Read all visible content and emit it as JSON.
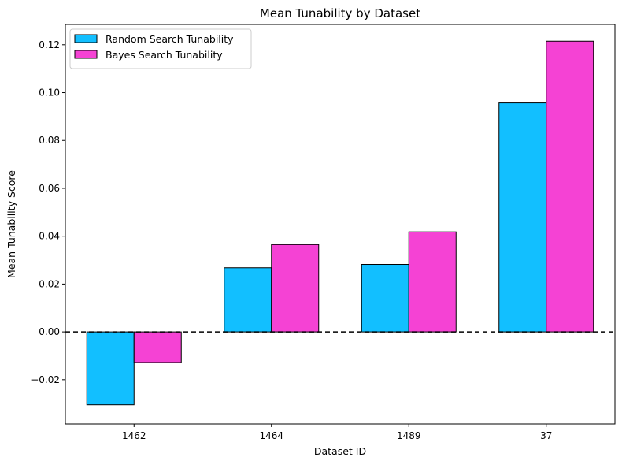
{
  "chart_data": {
    "type": "bar",
    "title": "Mean Tunability by Dataset",
    "xlabel": "Dataset ID",
    "ylabel": "Mean Tunability Score",
    "categories": [
      "1462",
      "1464",
      "1489",
      "37"
    ],
    "series": [
      {
        "name": "Random Search Tunability",
        "color": "#12bfff",
        "values": [
          -0.0305,
          0.0268,
          0.0282,
          0.0957
        ]
      },
      {
        "name": "Bayes Search Tunability",
        "color": "#f542d4",
        "values": [
          -0.0128,
          0.0365,
          0.0418,
          0.1215
        ]
      }
    ],
    "ylim": [
      -0.0385,
      0.1285
    ],
    "yticks": [
      -0.02,
      0.0,
      0.02,
      0.04,
      0.06,
      0.08,
      0.1,
      0.12
    ],
    "ytick_labels": [
      "−0.02",
      "0.00",
      "0.02",
      "0.04",
      "0.06",
      "0.08",
      "0.10",
      "0.12"
    ],
    "reference_line": {
      "y": 0.0,
      "style": "dashed",
      "color": "#000000"
    },
    "legend_position": "top-left",
    "grid": false
  }
}
